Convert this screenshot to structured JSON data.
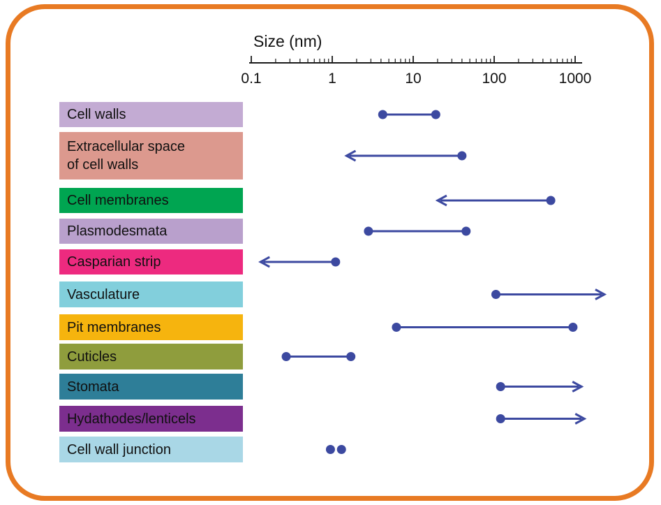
{
  "colors": {
    "frame_border": "#e87a23",
    "marker": "#3c49a0",
    "axis": "#1a1a1a",
    "text": "#111111"
  },
  "chart_data": {
    "type": "scatter",
    "subtype": "log-range-dot-plot",
    "title": "Size (nm)",
    "xlabel": "Size (nm)",
    "x_scale": "log",
    "xlim": [
      0.1,
      1000
    ],
    "x_ticks": [
      {
        "label": "0.1",
        "value": 0.1
      },
      {
        "label": "1",
        "value": 1
      },
      {
        "label": "10",
        "value": 10
      },
      {
        "label": "100",
        "value": 100
      },
      {
        "label": "1000",
        "value": 1000
      }
    ],
    "marker_legend": "dots = range endpoints; arrow = extends beyond value shown",
    "rows": [
      {
        "label": "Cell walls",
        "color": "#c3abd3",
        "marker": "range",
        "from": 4.2,
        "to": 19
      },
      {
        "label": "Extracellular space\nof cell walls",
        "color": "#dc998e",
        "marker": "arrow-left",
        "from": 40,
        "to": 1.5
      },
      {
        "label": "Cell membranes",
        "color": "#00a551",
        "marker": "arrow-left",
        "from": 500,
        "to": 20
      },
      {
        "label": "Plasmodesmata",
        "color": "#b9a0cc",
        "marker": "range",
        "from": 2.8,
        "to": 45
      },
      {
        "label": "Casparian strip",
        "color": "#ed2a7f",
        "marker": "arrow-left",
        "from": 1.1,
        "to": 0.13
      },
      {
        "label": "Vasculature",
        "color": "#82cfdc",
        "marker": "arrow-right",
        "from": 105,
        "to": 2300
      },
      {
        "label": "Pit membranes",
        "color": "#f6b40e",
        "marker": "range",
        "from": 6.2,
        "to": 940
      },
      {
        "label": "Cuticles",
        "color": "#8f9d3d",
        "marker": "range",
        "from": 0.27,
        "to": 1.7
      },
      {
        "label": "Stomata",
        "color": "#2e7e98",
        "marker": "arrow-right",
        "from": 120,
        "to": 1200
      },
      {
        "label": "Hydathodes/lenticels",
        "color": "#7c2e8e",
        "marker": "arrow-right",
        "from": 120,
        "to": 1300
      },
      {
        "label": "Cell wall junction",
        "color": "#a9d7e6",
        "marker": "dots",
        "from": 0.95,
        "to": 1.3
      }
    ]
  }
}
